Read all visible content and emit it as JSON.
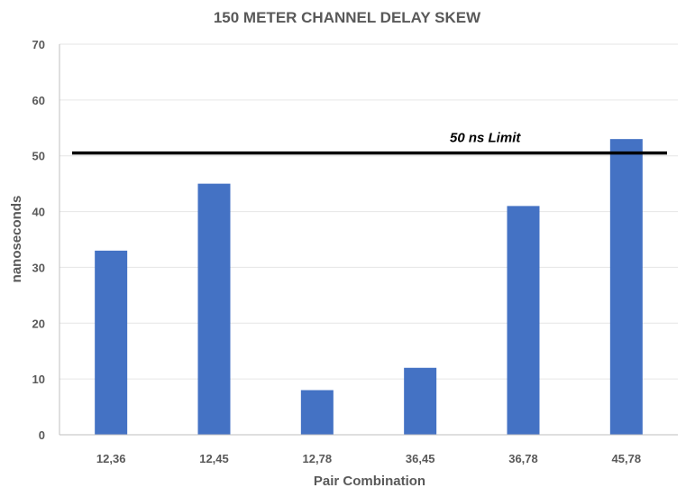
{
  "chart_data": {
    "type": "bar",
    "title": "150 METER CHANNEL DELAY SKEW",
    "xlabel": "Pair Combination",
    "ylabel": "nanoseconds",
    "categories": [
      "12,36",
      "12,45",
      "12,78",
      "36,45",
      "36,78",
      "45,78"
    ],
    "values": [
      33,
      45,
      8,
      12,
      41,
      53
    ],
    "ylim": [
      0,
      70
    ],
    "yticks": [
      0,
      10,
      20,
      30,
      40,
      50,
      60,
      70
    ],
    "grid": true,
    "bar_color": "#4472C4",
    "reference_line": {
      "value": 50.5,
      "label": "50 ns Limit",
      "color": "#000000"
    }
  }
}
